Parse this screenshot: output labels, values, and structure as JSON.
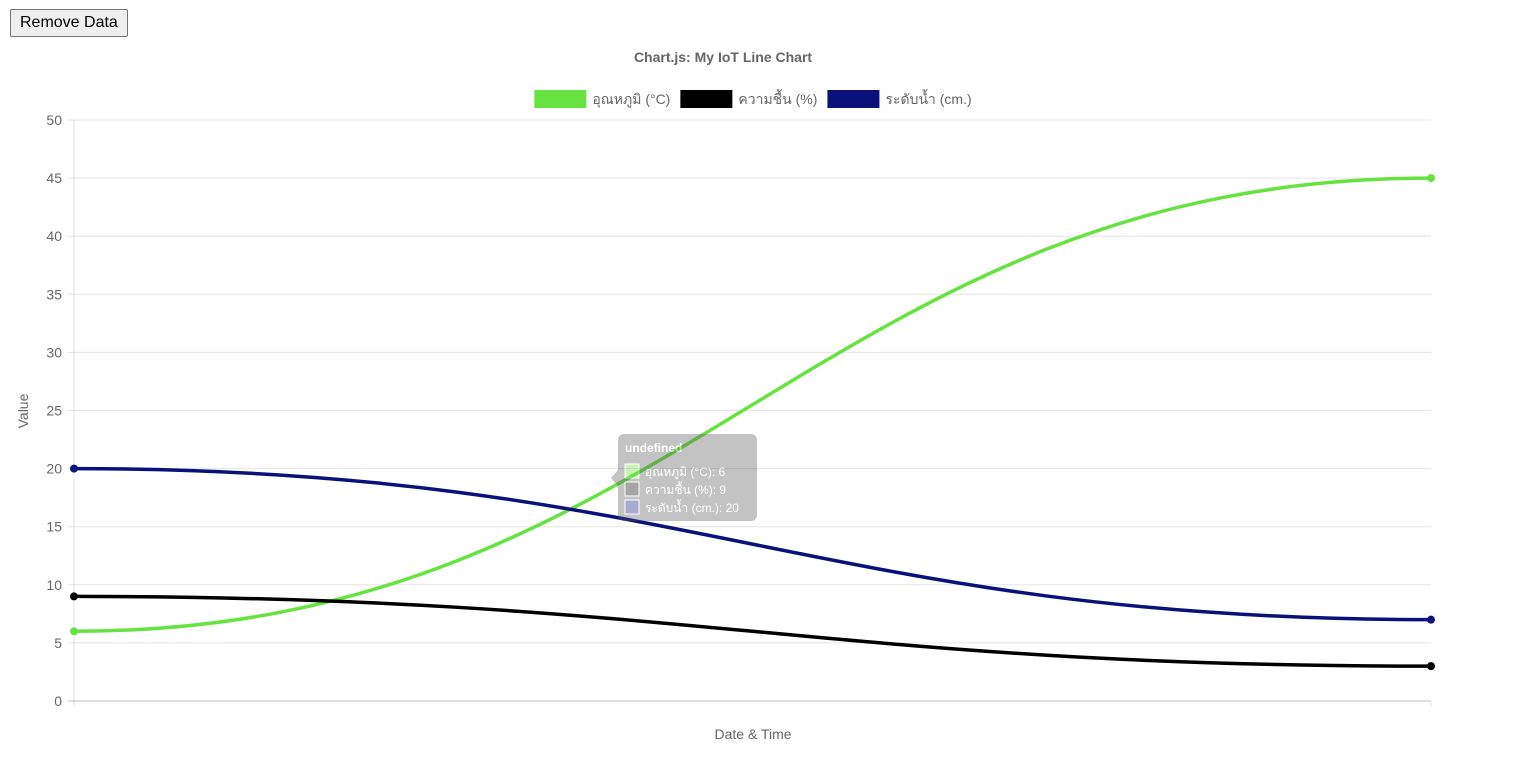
{
  "toolbar": {
    "remove_label": "Remove Data"
  },
  "chart_data": {
    "type": "line",
    "title": "Chart.js: My IoT Line Chart",
    "xlabel": "Date & Time",
    "ylabel": "Value",
    "ylim": [
      0,
      50
    ],
    "y_ticks": [
      0,
      5,
      10,
      15,
      20,
      25,
      30,
      35,
      40,
      45,
      50
    ],
    "grid": true,
    "legend_position": "top",
    "series": [
      {
        "name": "อุณหภูมิ (°C)",
        "color": "#66e340",
        "values": [
          6,
          45
        ]
      },
      {
        "name": "ความชื้น (%)",
        "color": "#000000",
        "values": [
          9,
          3
        ]
      },
      {
        "name": "ระดับน้ำ (cm.)",
        "color": "#0a117a",
        "values": [
          20,
          7
        ]
      }
    ],
    "tooltip": {
      "title": "undefined",
      "items": [
        "อุณหภูมิ (°C): 6",
        "ความชื้น (%): 9",
        "ระดับน้ำ (cm.): 20"
      ]
    }
  }
}
